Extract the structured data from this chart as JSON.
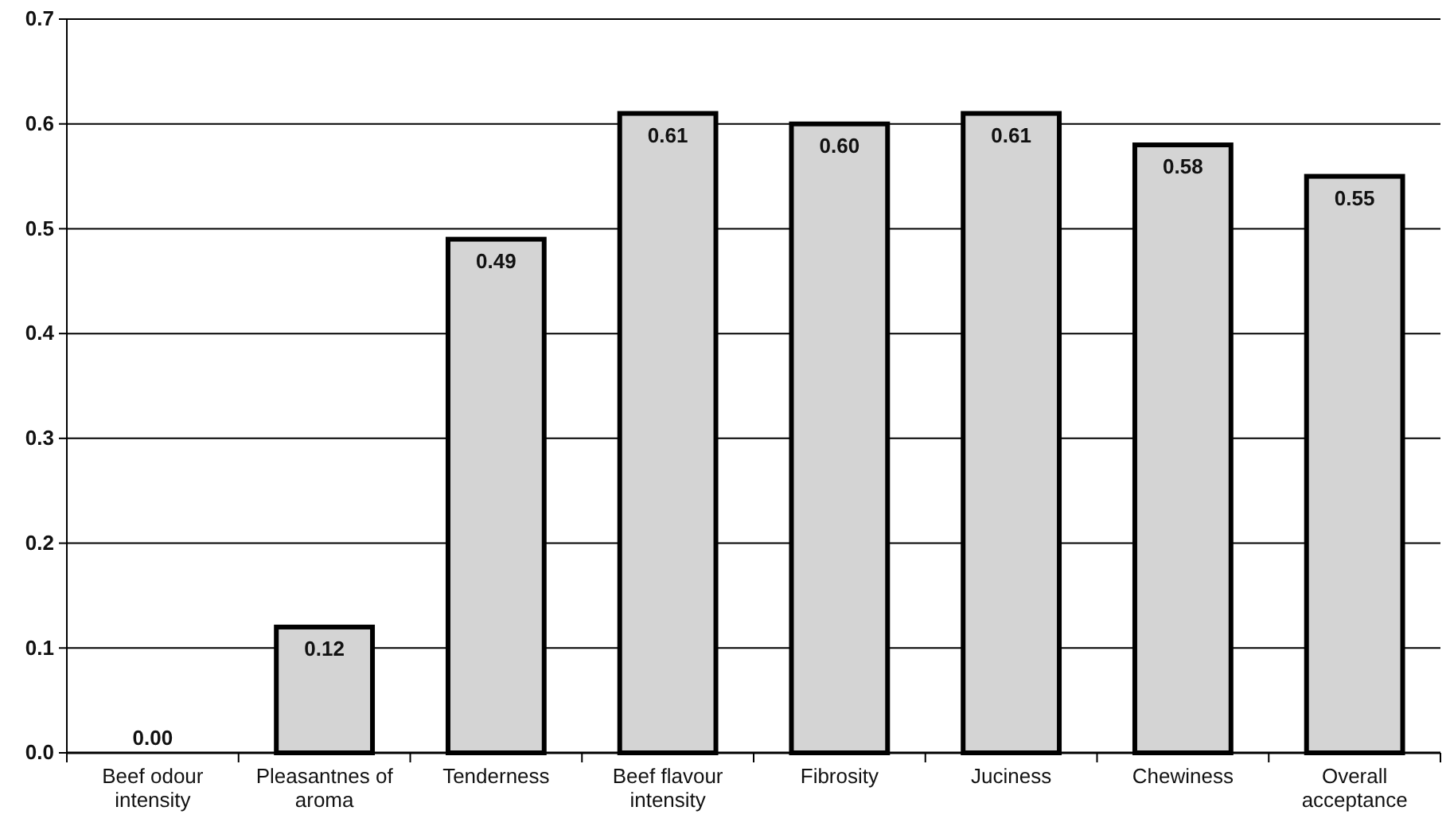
{
  "chart_data": {
    "type": "bar",
    "categories": [
      "Beef odour intensity",
      "Pleasantnes of aroma",
      "Tenderness",
      "Beef flavour intensity",
      "Fibrosity",
      "Juciness",
      "Chewiness",
      "Overall acceptance"
    ],
    "values": [
      0.0,
      0.12,
      0.49,
      0.61,
      0.6,
      0.61,
      0.58,
      0.55
    ],
    "value_labels": [
      "0.00",
      "0.12",
      "0.49",
      "0.61",
      "0.60",
      "0.61",
      "0.58",
      "0.55"
    ],
    "color": "#d4d4d4",
    "ylim": [
      0,
      0.7
    ],
    "yticks": [
      {
        "value": 0,
        "label": "0.0"
      },
      {
        "value": 0.1,
        "label": "0.1"
      },
      {
        "value": 0.2,
        "label": "0.2"
      },
      {
        "value": 0.3,
        "label": "0.3"
      },
      {
        "value": 0.4,
        "label": "0.4"
      },
      {
        "value": 0.5,
        "label": "0.5"
      },
      {
        "value": 0.6,
        "label": "0.6"
      },
      {
        "value": 0.7,
        "label": "0.7"
      }
    ],
    "grid": "y"
  }
}
